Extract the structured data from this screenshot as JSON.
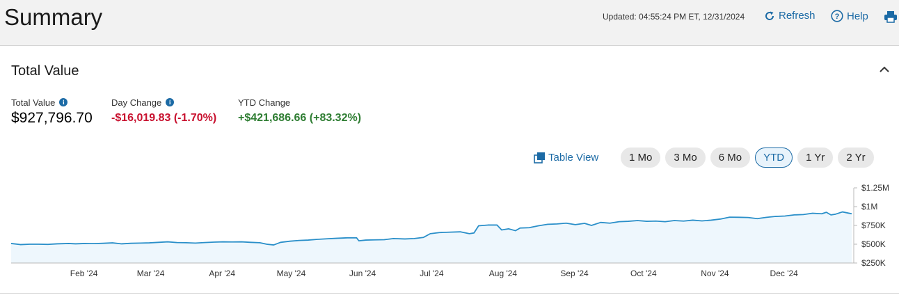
{
  "header": {
    "title": "Summary",
    "updated": "Updated: 04:55:24 PM ET, 12/31/2024",
    "refresh_label": "Refresh",
    "help_label": "Help",
    "icons": {
      "refresh": "refresh-icon",
      "help": "help-circle-icon",
      "print": "printer-icon"
    }
  },
  "section": {
    "title": "Total Value",
    "collapse_icon": "chevron-up-icon"
  },
  "metrics": {
    "total_value_label": "Total Value",
    "total_value": "$927,796.70",
    "day_change_label": "Day Change",
    "day_change": "-$16,019.83 (-1.70%)",
    "ytd_change_label": "YTD Change",
    "ytd_change": "+$421,686.66 (+83.32%)"
  },
  "colors": {
    "accent": "#1b6aa5",
    "negative": "#c8102e",
    "positive": "#2e7d32",
    "line": "#2a8fc9",
    "fill": "#eef7fd"
  },
  "controls": {
    "table_view_label": "Table View",
    "ranges": [
      "1 Mo",
      "3 Mo",
      "6 Mo",
      "YTD",
      "1 Yr",
      "2 Yr"
    ],
    "active_range": "YTD"
  },
  "chart_data": {
    "type": "area",
    "y_ticks": [
      "$1.25M",
      "$1M",
      "$750K",
      "$500K",
      "$250K"
    ],
    "ylim": [
      250000,
      1250000
    ],
    "x_ticks": [
      "Feb '24",
      "Mar '24",
      "Apr '24",
      "May '24",
      "Jun '24",
      "Jul '24",
      "Aug '24",
      "Sep '24",
      "Oct '24",
      "Nov '24",
      "Dec '24"
    ],
    "x_tick_days": [
      31,
      60,
      91,
      121,
      152,
      182,
      213,
      244,
      274,
      305,
      335
    ],
    "x_range_days": [
      0,
      365
    ],
    "series": [
      {
        "points": [
          [
            0,
            510000
          ],
          [
            4,
            495000
          ],
          [
            8,
            500000
          ],
          [
            12,
            500000
          ],
          [
            16,
            498000
          ],
          [
            20,
            505000
          ],
          [
            25,
            510000
          ],
          [
            28,
            505000
          ],
          [
            32,
            510000
          ],
          [
            36,
            508000
          ],
          [
            40,
            512000
          ],
          [
            44,
            518000
          ],
          [
            48,
            505000
          ],
          [
            52,
            512000
          ],
          [
            56,
            515000
          ],
          [
            60,
            518000
          ],
          [
            64,
            525000
          ],
          [
            68,
            532000
          ],
          [
            72,
            522000
          ],
          [
            76,
            520000
          ],
          [
            80,
            515000
          ],
          [
            84,
            522000
          ],
          [
            88,
            528000
          ],
          [
            92,
            532000
          ],
          [
            96,
            530000
          ],
          [
            100,
            532000
          ],
          [
            104,
            525000
          ],
          [
            108,
            520000
          ],
          [
            111,
            500000
          ],
          [
            114,
            490000
          ],
          [
            117,
            525000
          ],
          [
            121,
            540000
          ],
          [
            125,
            550000
          ],
          [
            129,
            555000
          ],
          [
            133,
            565000
          ],
          [
            137,
            572000
          ],
          [
            141,
            578000
          ],
          [
            146,
            585000
          ],
          [
            150,
            585000
          ],
          [
            151,
            545000
          ],
          [
            154,
            555000
          ],
          [
            158,
            558000
          ],
          [
            162,
            560000
          ],
          [
            166,
            575000
          ],
          [
            171,
            570000
          ],
          [
            175,
            575000
          ],
          [
            179,
            590000
          ],
          [
            182,
            640000
          ],
          [
            186,
            655000
          ],
          [
            190,
            660000
          ],
          [
            195,
            665000
          ],
          [
            199,
            640000
          ],
          [
            201,
            650000
          ],
          [
            203,
            745000
          ],
          [
            207,
            755000
          ],
          [
            211,
            755000
          ],
          [
            213,
            690000
          ],
          [
            216,
            705000
          ],
          [
            219,
            680000
          ],
          [
            221,
            715000
          ],
          [
            225,
            720000
          ],
          [
            229,
            745000
          ],
          [
            233,
            765000
          ],
          [
            237,
            770000
          ],
          [
            241,
            780000
          ],
          [
            245,
            760000
          ],
          [
            249,
            778000
          ],
          [
            252,
            750000
          ],
          [
            256,
            790000
          ],
          [
            260,
            780000
          ],
          [
            264,
            800000
          ],
          [
            268,
            805000
          ],
          [
            272,
            815000
          ],
          [
            276,
            805000
          ],
          [
            280,
            808000
          ],
          [
            284,
            800000
          ],
          [
            288,
            815000
          ],
          [
            292,
            808000
          ],
          [
            296,
            820000
          ],
          [
            300,
            810000
          ],
          [
            304,
            820000
          ],
          [
            308,
            835000
          ],
          [
            312,
            860000
          ],
          [
            316,
            858000
          ],
          [
            320,
            855000
          ],
          [
            324,
            840000
          ],
          [
            328,
            858000
          ],
          [
            332,
            870000
          ],
          [
            336,
            875000
          ],
          [
            340,
            890000
          ],
          [
            344,
            895000
          ],
          [
            348,
            912000
          ],
          [
            352,
            905000
          ],
          [
            354,
            925000
          ],
          [
            356,
            890000
          ],
          [
            358,
            900000
          ],
          [
            361,
            930000
          ],
          [
            365,
            905000
          ]
        ]
      }
    ]
  }
}
